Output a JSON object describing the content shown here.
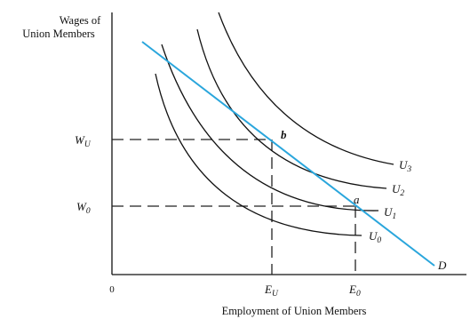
{
  "y_axis_label_line1": "Wages of",
  "y_axis_label_line2": "Union Members",
  "x_axis_label": "Employment of Union Members",
  "origin_label": "0",
  "wage_labels": [
    {
      "main": "W",
      "sub": "U"
    },
    {
      "main": "W",
      "sub": "0"
    }
  ],
  "employment_labels": [
    {
      "main": "E",
      "sub": "U"
    },
    {
      "main": "E",
      "sub": "0"
    }
  ],
  "point_labels": [
    "a",
    "b"
  ],
  "demand_label": "D",
  "curve_labels": [
    {
      "main": "U",
      "sub": "0"
    },
    {
      "main": "U",
      "sub": "1"
    },
    {
      "main": "U",
      "sub": "2"
    },
    {
      "main": "U",
      "sub": "3"
    }
  ],
  "colors": {
    "demand_line": "#2aa6dc",
    "curves": "#111111",
    "axes": "#111111",
    "guides": "#222222"
  }
}
